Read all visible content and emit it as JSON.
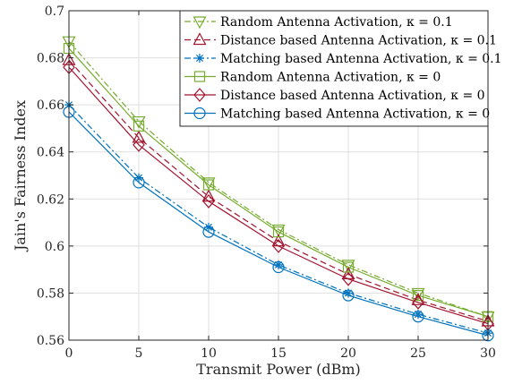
{
  "chart_data": {
    "type": "line",
    "xlabel": "Transmit Power (dBm)",
    "ylabel": "Jain's Fairness Index",
    "xlim": [
      0,
      30
    ],
    "ylim": [
      0.56,
      0.7
    ],
    "xticks": [
      0,
      5,
      10,
      15,
      20,
      25,
      30
    ],
    "yticks": [
      0.56,
      0.58,
      0.6,
      0.62,
      0.64,
      0.66,
      0.68,
      0.7
    ],
    "xtick_labels": [
      "0",
      "5",
      "10",
      "15",
      "20",
      "25",
      "30"
    ],
    "ytick_labels": [
      "0.56",
      "0.58",
      "0.6",
      "0.62",
      "0.64",
      "0.66",
      "0.68",
      "0.7"
    ],
    "grid": true,
    "legend_position": "top-right",
    "x": [
      0,
      5,
      10,
      15,
      20,
      25,
      30
    ],
    "series": [
      {
        "name": "Random Antenna Activation, κ = 0.1",
        "values": [
          0.687,
          0.653,
          0.627,
          0.607,
          0.592,
          0.58,
          0.57
        ],
        "color": "#77AC30",
        "dash": "dashdot",
        "marker": "triangle-down"
      },
      {
        "name": "Distance based Antenna Activation, κ = 0.1",
        "values": [
          0.679,
          0.646,
          0.621,
          0.602,
          0.588,
          0.577,
          0.568
        ],
        "color": "#A2142F",
        "dash": "dash",
        "marker": "triangle-up"
      },
      {
        "name": "Matching based Antenna Activation, κ = 0.1",
        "values": [
          0.66,
          0.629,
          0.608,
          0.592,
          0.58,
          0.571,
          0.563
        ],
        "color": "#0072BD",
        "dash": "dashdot",
        "marker": "asterisk"
      },
      {
        "name": "Random Antenna Activation, κ = 0",
        "values": [
          0.684,
          0.651,
          0.626,
          0.606,
          0.591,
          0.579,
          0.57
        ],
        "color": "#77AC30",
        "dash": "solid",
        "marker": "square"
      },
      {
        "name": "Distance based Antenna Activation, κ = 0",
        "values": [
          0.676,
          0.643,
          0.619,
          0.6,
          0.586,
          0.576,
          0.567
        ],
        "color": "#A2142F",
        "dash": "solid",
        "marker": "diamond"
      },
      {
        "name": "Matching based Antenna Activation, κ = 0",
        "values": [
          0.657,
          0.627,
          0.606,
          0.591,
          0.579,
          0.57,
          0.562
        ],
        "color": "#0072BD",
        "dash": "solid",
        "marker": "circle"
      }
    ]
  }
}
